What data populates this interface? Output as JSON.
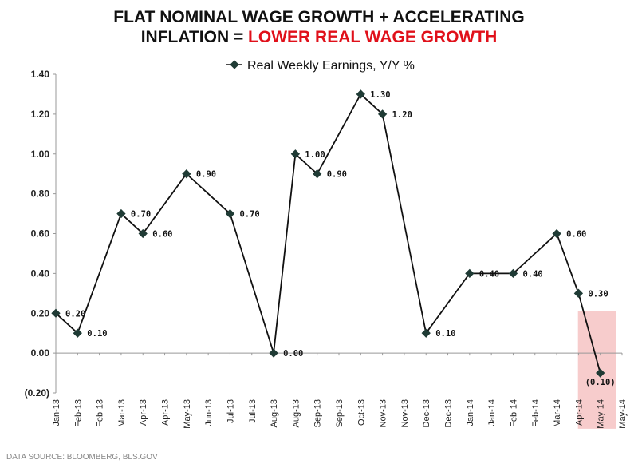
{
  "title": {
    "line1": "FLAT NOMINAL WAGE GROWTH + ACCELERATING",
    "line2_black": "INFLATION = ",
    "line2_red": "LOWER REAL WAGE GROWTH"
  },
  "source": "DATA SOURCE: BLOOMBERG, BLS.GOV",
  "colors": {
    "line": "#111111",
    "marker": "#1f3b35",
    "highlight": "#f6c3c3",
    "negative_label": "#d21f1f",
    "title_red": "#e0101a"
  },
  "chart_data": {
    "type": "line",
    "title": "FLAT NOMINAL WAGE GROWTH + ACCELERATING INFLATION = LOWER REAL WAGE GROWTH",
    "xlabel": "",
    "ylabel": "",
    "ylim": [
      -0.2,
      1.4
    ],
    "y_ticks": [
      -0.2,
      0.0,
      0.2,
      0.4,
      0.6,
      0.8,
      1.0,
      1.2,
      1.4
    ],
    "y_tick_labels": [
      "(0.20)",
      "0.00",
      "0.20",
      "0.40",
      "0.60",
      "0.80",
      "1.00",
      "1.20",
      "1.40"
    ],
    "grid": false,
    "legend_position": "top-center",
    "x_tick_labels": [
      "Jan-13",
      "Feb-13",
      "Feb-13",
      "Mar-13",
      "Apr-13",
      "Apr-13",
      "May-13",
      "Jun-13",
      "Jul-13",
      "Jul-13",
      "Aug-13",
      "Aug-13",
      "Sep-13",
      "Sep-13",
      "Oct-13",
      "Nov-13",
      "Nov-13",
      "Dec-13",
      "Dec-13",
      "Jan-14",
      "Jan-14",
      "Feb-14",
      "Feb-14",
      "Mar-14",
      "Apr-14",
      "May-14",
      "May-14"
    ],
    "series": [
      {
        "name": "Real Weekly Earnings, Y/Y %",
        "points": [
          {
            "x": "Jan-13",
            "y": 0.2,
            "label": "0.20"
          },
          {
            "x": "Feb-13",
            "y": 0.1,
            "label": "0.10"
          },
          {
            "x": "Mar-13",
            "y": 0.7,
            "label": "0.70"
          },
          {
            "x": "Apr-13",
            "y": 0.6,
            "label": "0.60"
          },
          {
            "x": "May-13",
            "y": 0.9,
            "label": "0.90"
          },
          {
            "x": "Jul-13",
            "y": 0.7,
            "label": "0.70"
          },
          {
            "x": "Aug-13",
            "y": 0.0,
            "label": "0.00"
          },
          {
            "x": "Aug-13",
            "y": 1.0,
            "label": "1.00"
          },
          {
            "x": "Sep-13",
            "y": 0.9,
            "label": "0.90"
          },
          {
            "x": "Oct-13",
            "y": 1.3,
            "label": "1.30"
          },
          {
            "x": "Nov-13",
            "y": 1.2,
            "label": "1.20"
          },
          {
            "x": "Dec-13",
            "y": 0.1,
            "label": "0.10"
          },
          {
            "x": "Jan-14",
            "y": 0.4,
            "label": "0.40"
          },
          {
            "x": "Feb-14",
            "y": 0.4,
            "label": "0.40"
          },
          {
            "x": "Mar-14",
            "y": 0.6,
            "label": "0.60"
          },
          {
            "x": "Apr-14",
            "y": 0.3,
            "label": "0.30"
          },
          {
            "x": "May-14",
            "y": -0.1,
            "label": "(0.10)",
            "highlight": true
          }
        ]
      }
    ]
  }
}
